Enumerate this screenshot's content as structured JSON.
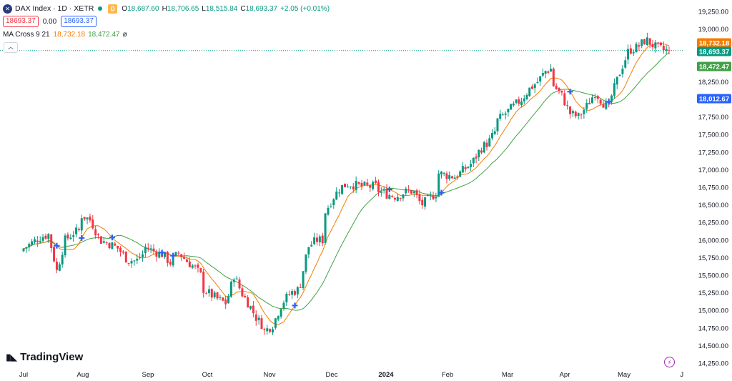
{
  "legend": {
    "symbol_icon": "x-logo-icon",
    "title": "DAX Index · 1D · XETR",
    "market_badge": "D",
    "open_label": "O",
    "open": "18,687.60",
    "high_label": "H",
    "high": "18,706.65",
    "low_label": "L",
    "low": "18,515.84",
    "close_label": "C",
    "close": "18,693.37",
    "change": "+2.05 (+0.01%)",
    "bid": "18693.37",
    "spread": "0.00",
    "ask": "18693.37",
    "indicator_name": "MA Cross 9 21",
    "ma_fast_value": "18,732.18",
    "ma_slow_value": "18,472.47",
    "ma_symbol": "ø",
    "collapse_icon": "chevron-up-icon"
  },
  "branding": {
    "logo_text": "TradingView",
    "logo_icon": "tradingview-logo-icon"
  },
  "colors": {
    "up": "#089981",
    "down": "#f23645",
    "ma_fast": "#f57c00",
    "ma_slow": "#43a047",
    "cross": "#2962ff",
    "grid_text": "#131722"
  },
  "chart_data": {
    "type": "candlestick",
    "instrument": "DAX Index",
    "interval": "1D",
    "exchange": "XETR",
    "x_axis_labels": [
      "Jul",
      "Aug",
      "Sep",
      "Oct",
      "Nov",
      "Dec",
      "2024",
      "Feb",
      "Mar",
      "Apr",
      "May",
      "Jun"
    ],
    "y_axis_labels": [
      "14,250.00",
      "14,500.00",
      "14,750.00",
      "15,000.00",
      "15,250.00",
      "15,500.00",
      "15,750.00",
      "16,000.00",
      "16,250.00",
      "16,500.00",
      "16,750.00",
      "17,000.00",
      "17,250.00",
      "17,500.00",
      "17,750.00",
      "18,000.00",
      "18,250.00",
      "18,500.00",
      "18,750.00",
      "19,000.00",
      "19,250.00"
    ],
    "ylim": [
      14250,
      19250
    ],
    "price_tags": [
      {
        "label": "18,732.18",
        "value": 18732.18,
        "color": "#f57c00"
      },
      {
        "label": "18,693.37",
        "value": 18693.37,
        "color": "#089981"
      },
      {
        "label": "18,472.47",
        "value": 18472.47,
        "color": "#43a047"
      },
      {
        "label": "18,012.67",
        "value": 18012.67,
        "color": "#2962ff"
      }
    ],
    "current_price": 18693.37,
    "close_series_monthly": [
      {
        "month": "Jul",
        "values": [
          15880,
          15960,
          16040,
          16080,
          15560,
          16000,
          16100,
          16150
        ]
      },
      {
        "month": "Aug",
        "values": [
          16350,
          16280,
          16000,
          15950,
          15880,
          15720,
          15700,
          15840
        ]
      },
      {
        "month": "Sep",
        "values": [
          15900,
          15840,
          15800,
          15680,
          15820,
          15700,
          15600,
          15450
        ]
      },
      {
        "month": "Oct",
        "values": [
          15300,
          15220,
          15150,
          15100,
          15500,
          15250,
          15080,
          14880,
          14760
        ]
      },
      {
        "month": "Nov",
        "values": [
          14700,
          14800,
          15100,
          15250,
          15300,
          15900,
          16000,
          16000
        ]
      },
      {
        "month": "Dec",
        "values": [
          16400,
          16600,
          16750,
          16800,
          16780,
          16760,
          16760,
          16770
        ]
      },
      {
        "month": "2024",
        "values": [
          16700,
          16650,
          16620,
          16680,
          16700,
          16500,
          16600,
          16700
        ]
      },
      {
        "month": "Feb",
        "values": [
          16950,
          16920,
          16900,
          17000,
          17100,
          17300,
          17400,
          17600
        ]
      },
      {
        "month": "Mar",
        "values": [
          17700,
          17800,
          17900,
          18000,
          18150,
          18250,
          18400,
          18450
        ]
      },
      {
        "month": "Apr",
        "values": [
          18200,
          18050,
          17800,
          17750,
          17900,
          18100,
          17950,
          17850
        ]
      },
      {
        "month": "May",
        "values": [
          18050,
          18400,
          18700,
          18740,
          18850,
          18750,
          18700,
          18693
        ]
      }
    ],
    "series": [
      {
        "name": "MA Cross 9",
        "color": "#f57c00"
      },
      {
        "name": "MA Cross 21",
        "color": "#43a047"
      }
    ],
    "grid": false,
    "legend": "top-left"
  }
}
